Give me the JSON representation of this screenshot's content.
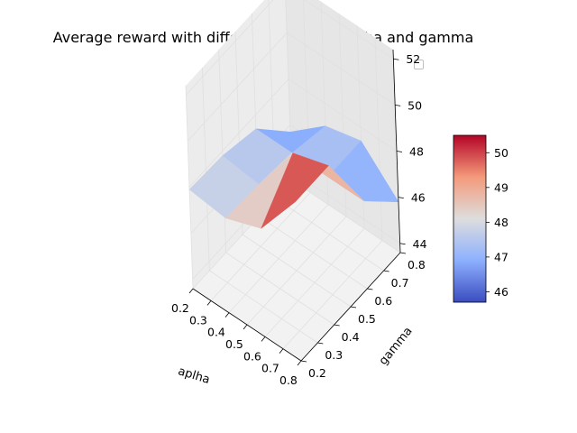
{
  "chart_data": {
    "type": "surface3d",
    "title": "Average reward with different values of aplha and gamma",
    "xlabel": "aplha",
    "ylabel": "gamma",
    "zlabel": "",
    "x_ticks": [
      "0.2",
      "0.3",
      "0.4",
      "0.5",
      "0.6",
      "0.7",
      "0.8"
    ],
    "y_ticks": [
      "0.2",
      "0.3",
      "0.4",
      "0.5",
      "0.6",
      "0.7",
      "0.8"
    ],
    "z_ticks": [
      "44",
      "46",
      "48",
      "50",
      "52"
    ],
    "xlim": [
      0.2,
      0.8
    ],
    "ylim": [
      0.2,
      0.8
    ],
    "zlim": [
      43.6,
      52.4
    ],
    "colorbar": {
      "colormap": "coolwarm",
      "range": [
        45.7,
        50.5
      ],
      "ticks": [
        "46",
        "47",
        "48",
        "49",
        "50"
      ]
    },
    "legend": {
      "placement": "top-right",
      "entries": []
    },
    "grid": true,
    "x": [
      0.2,
      0.4,
      0.6,
      0.8
    ],
    "y": [
      0.2,
      0.4,
      0.6,
      0.8
    ],
    "z": [
      [
        47.9,
        47.7,
        48.3,
        50.5
      ],
      [
        47.8,
        47.6,
        50.0,
        50.5
      ],
      [
        47.4,
        47.4,
        47.4,
        47.4
      ],
      [
        45.7,
        47.0,
        47.4,
        45.8
      ]
    ],
    "colors": {
      "pane": "#f2f2f2",
      "grid": "#e0e0e0",
      "axis": "#000000"
    }
  }
}
